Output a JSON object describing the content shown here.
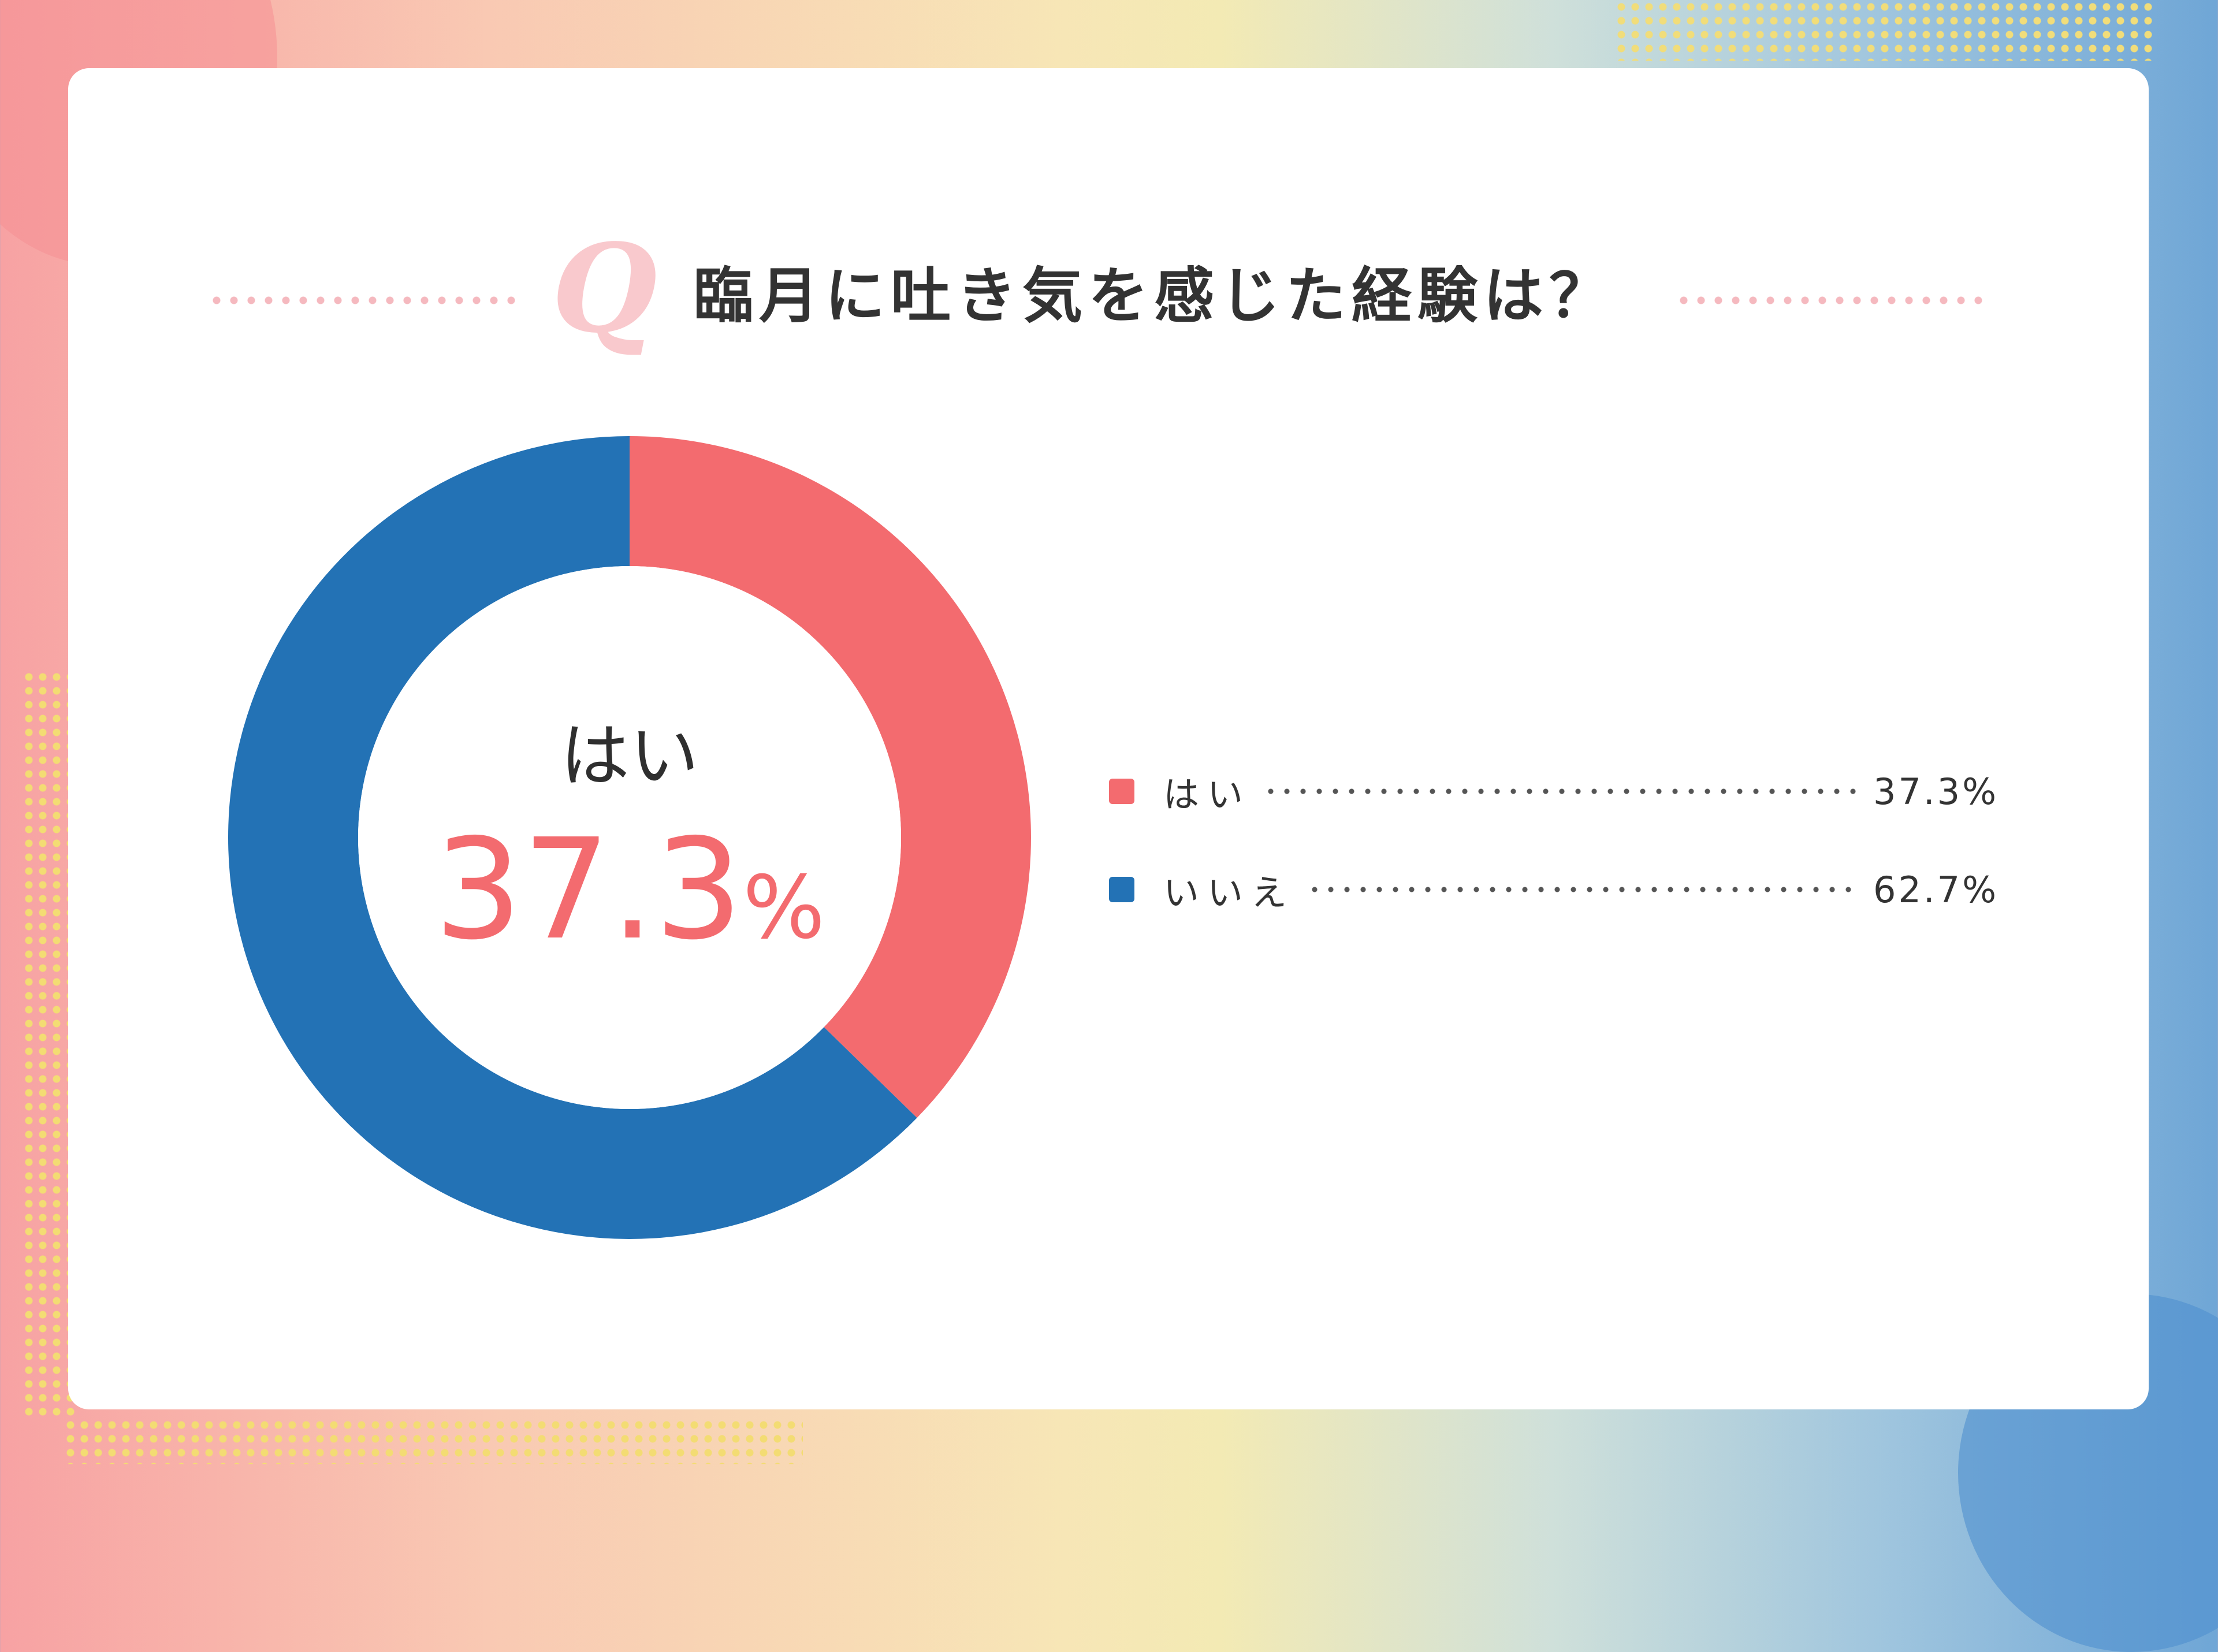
{
  "title": {
    "q_mark": "Q",
    "text": "臨月に吐き気を感じた経験は？"
  },
  "center": {
    "label": "はい",
    "value": "37.3",
    "unit": "%"
  },
  "legend": [
    {
      "label": "はい",
      "value_text": "37.3%",
      "color": "#f36b6f"
    },
    {
      "label": "いいえ",
      "value_text": "62.7%",
      "color": "#2372b5"
    }
  ],
  "chart_data": {
    "type": "pie",
    "title": "臨月に吐き気を感じた経験は？",
    "categories": [
      "はい",
      "いいえ"
    ],
    "values": [
      37.3,
      62.7
    ],
    "unit": "%",
    "colors": [
      "#f36b6f",
      "#2372b5"
    ],
    "donut": true,
    "start": "12 o'clock, clockwise",
    "legend_position": "right"
  }
}
